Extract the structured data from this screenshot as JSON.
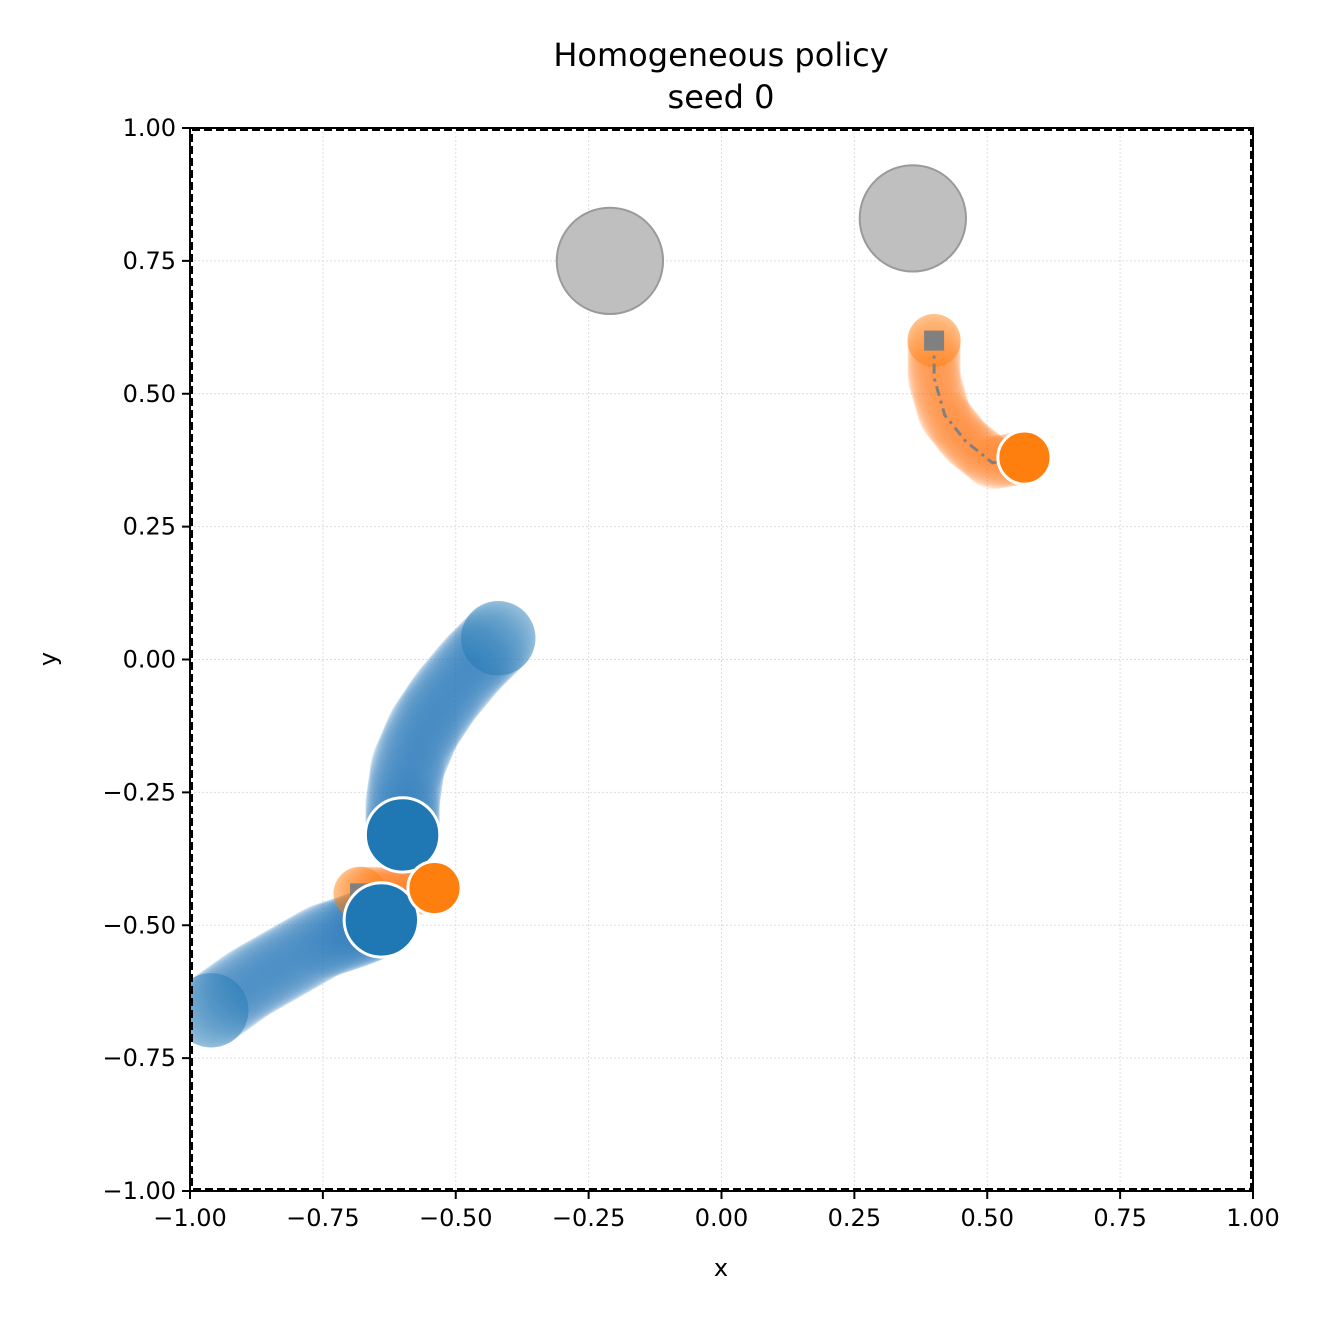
{
  "chart_data": {
    "type": "scatter",
    "title": "Homogeneous policy",
    "subtitle": "seed 0",
    "xlabel": "x",
    "ylabel": "y",
    "xlim": [
      -1.0,
      1.0
    ],
    "ylim": [
      -1.0,
      1.0
    ],
    "grid": true,
    "x_ticks": [
      "−1.00",
      "−0.75",
      "−0.50",
      "−0.25",
      "0.00",
      "0.25",
      "0.50",
      "0.75",
      "1.00"
    ],
    "y_ticks": [
      "−1.00",
      "−0.75",
      "−0.50",
      "−0.25",
      "0.00",
      "0.25",
      "0.50",
      "0.75",
      "1.00"
    ],
    "obstacles": [
      {
        "x": -0.21,
        "y": 0.75,
        "r": 0.1,
        "color": "#bfbfbf"
      },
      {
        "x": 0.36,
        "y": 0.83,
        "r": 0.1,
        "color": "#bfbfbf"
      }
    ],
    "trajectories": [
      {
        "color": "#1f77b4",
        "agent_radius": 0.07,
        "points": [
          [
            -0.42,
            0.04
          ],
          [
            -0.47,
            -0.01
          ],
          [
            -0.52,
            -0.07
          ],
          [
            -0.56,
            -0.13
          ],
          [
            -0.59,
            -0.2
          ],
          [
            -0.6,
            -0.27
          ],
          [
            -0.6,
            -0.33
          ]
        ]
      },
      {
        "color": "#1f77b4",
        "agent_radius": 0.07,
        "points": [
          [
            -0.96,
            -0.66
          ],
          [
            -0.89,
            -0.61
          ],
          [
            -0.82,
            -0.57
          ],
          [
            -0.75,
            -0.53
          ],
          [
            -0.69,
            -0.51
          ],
          [
            -0.64,
            -0.49
          ]
        ]
      },
      {
        "color": "#ff7f0e",
        "agent_radius": 0.05,
        "goal": [
          -0.68,
          -0.44
        ],
        "points": [
          [
            -0.68,
            -0.44
          ],
          [
            -0.63,
            -0.44
          ],
          [
            -0.58,
            -0.43
          ],
          [
            -0.54,
            -0.43
          ]
        ]
      },
      {
        "color": "#ff7f0e",
        "agent_radius": 0.05,
        "goal": [
          0.4,
          0.6
        ],
        "points": [
          [
            0.4,
            0.6
          ],
          [
            0.4,
            0.53
          ],
          [
            0.42,
            0.46
          ],
          [
            0.46,
            0.41
          ],
          [
            0.51,
            0.37
          ],
          [
            0.57,
            0.38
          ]
        ]
      }
    ]
  }
}
